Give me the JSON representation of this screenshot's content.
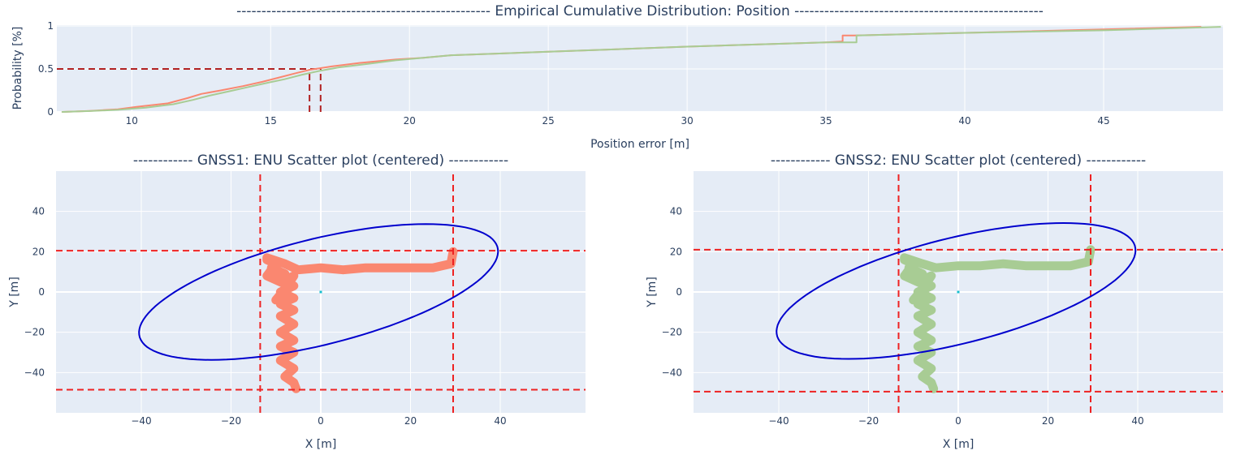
{
  "chart_data": [
    {
      "type": "line",
      "title": "---------------------------------------------------  Empirical Cumulative Distribution: Position  --------------------------------------------------",
      "xlabel": "Position error [m]",
      "ylabel": "Probability [%]",
      "xlim": [
        7.3,
        49.3
      ],
      "ylim": [
        0,
        1.01
      ],
      "xticks": [
        10,
        15,
        20,
        25,
        30,
        35,
        40,
        45
      ],
      "yticks": [
        0,
        0.5,
        1
      ],
      "ytick_labels": [
        "0",
        "0.5",
        "1"
      ],
      "grid": true,
      "series": [
        {
          "color": "#fa8770",
          "x": [
            7.5,
            8.5,
            9.5,
            10.2,
            11.3,
            12.0,
            12.5,
            13.2,
            14.0,
            14.7,
            15.3,
            15.9,
            16.4,
            17.2,
            18.2,
            19.5,
            20.5,
            21.5,
            25,
            30,
            35,
            35.6,
            35.6,
            36.0,
            40,
            45,
            48.5
          ],
          "y": [
            0,
            0.012,
            0.03,
            0.06,
            0.1,
            0.16,
            0.21,
            0.25,
            0.3,
            0.35,
            0.4,
            0.45,
            0.49,
            0.53,
            0.57,
            0.61,
            0.63,
            0.66,
            0.7,
            0.76,
            0.81,
            0.82,
            0.89,
            0.89,
            0.92,
            0.96,
            0.99
          ]
        },
        {
          "color": "#a8cc94",
          "x": [
            7.5,
            8.5,
            9.5,
            10.5,
            11.5,
            12.2,
            12.8,
            13.5,
            14.2,
            14.9,
            15.5,
            16.1,
            16.8,
            17.5,
            18.5,
            19.5,
            20.5,
            21.5,
            25,
            30,
            35,
            36.1,
            36.1,
            40,
            45,
            49.2
          ],
          "y": [
            0,
            0.01,
            0.025,
            0.05,
            0.09,
            0.14,
            0.19,
            0.24,
            0.29,
            0.34,
            0.38,
            0.43,
            0.48,
            0.52,
            0.56,
            0.6,
            0.63,
            0.66,
            0.7,
            0.76,
            0.81,
            0.81,
            0.89,
            0.92,
            0.95,
            0.99
          ]
        }
      ],
      "reference_lines": [
        {
          "orientation": "h",
          "y": 0.5,
          "x_from": 7.3,
          "x_to": 16.8,
          "color": "#b22222"
        },
        {
          "orientation": "v",
          "x": 16.4,
          "y_from": 0,
          "y_to": 0.5,
          "color": "#b22222"
        },
        {
          "orientation": "v",
          "x": 16.8,
          "y_from": 0,
          "y_to": 0.5,
          "color": "#b22222"
        }
      ]
    },
    {
      "type": "scatter",
      "title": "------------ GNSS1: ENU Scatter plot (centered) ------------",
      "xlabel": "X [m]",
      "ylabel": "Y [m]",
      "xlim": [
        -59,
        59
      ],
      "ylim": [
        -60,
        60
      ],
      "xticks": [
        -40,
        -20,
        0,
        20,
        40
      ],
      "yticks": [
        -40,
        -20,
        0,
        20,
        40
      ],
      "grid": true,
      "series": [
        {
          "color": "#fa8770",
          "x": [
            -5.5,
            -6,
            -8,
            -6,
            -9,
            -6,
            -9,
            -6,
            -9,
            -6,
            -9,
            -6,
            -9,
            -6,
            -9,
            -6,
            -9,
            -6,
            -9,
            -7,
            -10,
            -7,
            -10,
            -8,
            -11,
            -9,
            -12,
            -10,
            -12,
            -12,
            -8,
            -5,
            0,
            5,
            10,
            15,
            20,
            25,
            29,
            29.5
          ],
          "y": [
            -48,
            -45,
            -42,
            -38,
            -34,
            -30,
            -27,
            -24,
            -20,
            -16,
            -12,
            -9,
            -6,
            -3,
            0,
            3,
            5,
            8,
            -2,
            4,
            -4,
            3,
            6,
            9,
            12,
            5,
            8,
            14,
            16,
            17,
            14,
            11,
            12,
            11,
            12,
            12,
            12,
            12,
            14,
            20
          ]
        }
      ],
      "center_point": {
        "x": 0,
        "y": 0,
        "color": "#17becf"
      },
      "ellipse": {
        "cx": -0.5,
        "cy": 0,
        "semi_axis_major": 47,
        "semi_axis_minor": 23,
        "angle_deg": 37,
        "color": "#0000cd"
      },
      "reference_lines": [
        {
          "orientation": "v",
          "x": -13.5,
          "color": "#ee2222"
        },
        {
          "orientation": "v",
          "x": 29.5,
          "color": "#ee2222"
        },
        {
          "orientation": "h",
          "y": 20.5,
          "color": "#ee2222"
        },
        {
          "orientation": "h",
          "y": -48.5,
          "color": "#ee2222"
        }
      ]
    },
    {
      "type": "scatter",
      "title": "------------ GNSS2: ENU Scatter plot (centered) ------------",
      "xlabel": "X [m]",
      "ylabel": "Y [m]",
      "xlim": [
        -59,
        59
      ],
      "ylim": [
        -60,
        60
      ],
      "xticks": [
        -40,
        -20,
        0,
        20,
        40
      ],
      "yticks": [
        -40,
        -20,
        0,
        20,
        40
      ],
      "grid": true,
      "series": [
        {
          "color": "#a8cc94",
          "x": [
            -5.5,
            -6,
            -8,
            -6,
            -9,
            -6,
            -9,
            -6,
            -9,
            -6,
            -9,
            -6,
            -9,
            -6,
            -9,
            -6,
            -9,
            -6,
            -9,
            -7,
            -10,
            -7,
            -10,
            -8,
            -11,
            -9,
            -12,
            -10,
            -12,
            -12,
            -8,
            -5,
            0,
            5,
            10,
            15,
            20,
            25,
            29,
            29.5
          ],
          "y": [
            -48,
            -45,
            -42,
            -38,
            -34,
            -30,
            -27,
            -24,
            -20,
            -16,
            -12,
            -9,
            -6,
            -3,
            0,
            3,
            5,
            8,
            -2,
            4,
            -4,
            3,
            6,
            9,
            12,
            5,
            8,
            14,
            16,
            17,
            14,
            12,
            13,
            13,
            14,
            13,
            13,
            13,
            15,
            21
          ]
        }
      ],
      "center_point": {
        "x": 0,
        "y": 0,
        "color": "#17becf"
      },
      "ellipse": {
        "cx": -0.5,
        "cy": 0.5,
        "semi_axis_major": 47,
        "semi_axis_minor": 23,
        "angle_deg": 37,
        "color": "#0000cd"
      },
      "reference_lines": [
        {
          "orientation": "v",
          "x": -13.3,
          "color": "#ee2222"
        },
        {
          "orientation": "v",
          "x": 29.5,
          "color": "#ee2222"
        },
        {
          "orientation": "h",
          "y": 21,
          "color": "#ee2222"
        },
        {
          "orientation": "h",
          "y": -49.5,
          "color": "#ee2222"
        }
      ]
    }
  ]
}
